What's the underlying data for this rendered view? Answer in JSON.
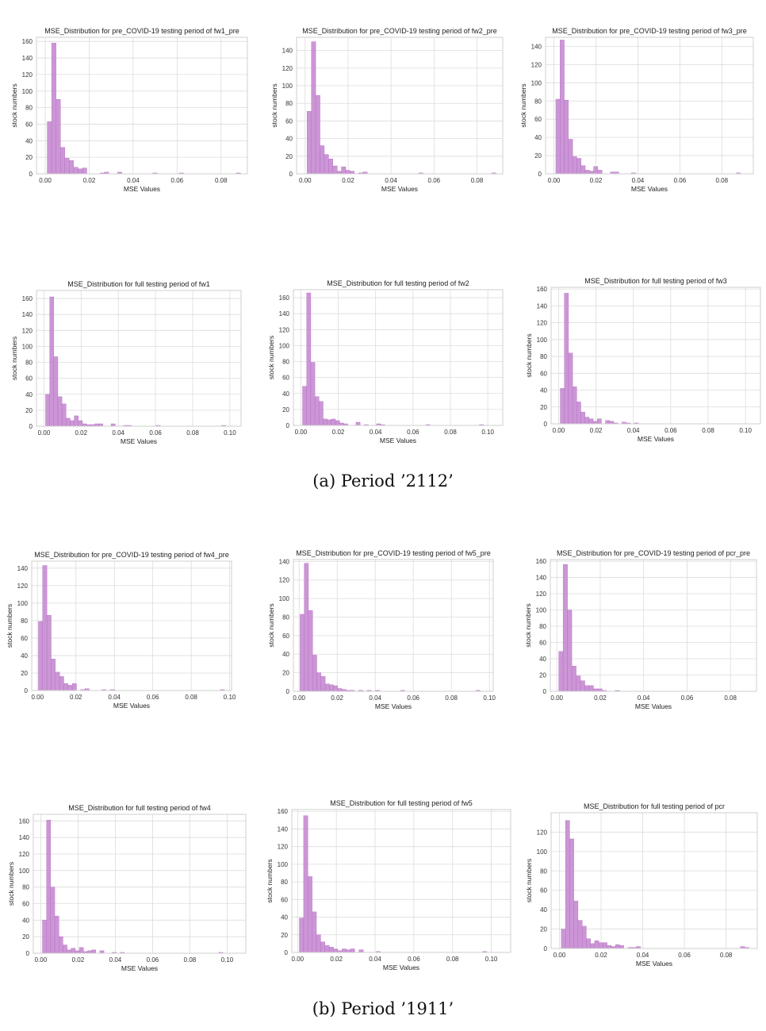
{
  "captions": {
    "a": "(a) Period ’2112’",
    "b": "(b) Period ’1911’"
  },
  "style": {
    "bar_color": "#c78bd2",
    "bar_edge": "#b36cc0",
    "grid_color": "#dcdcdc",
    "frame_color": "#cfcfcf"
  },
  "chart_data": [
    {
      "type": "bar",
      "title": "MSE_Distribution for pre_COVID-19 testing period of fw1_pre",
      "xlabel": "MSE Values",
      "ylabel": "stock numbers",
      "xlim": [
        -0.004,
        0.092
      ],
      "ylim": [
        0,
        165
      ],
      "xticks": [
        0.0,
        0.02,
        0.04,
        0.06,
        0.08
      ],
      "xtick_labels": [
        "0.00",
        "0.02",
        "0.04",
        "0.06",
        "0.08"
      ],
      "yticks": [
        0,
        20,
        40,
        60,
        80,
        100,
        120,
        140,
        160
      ],
      "bin_start": 0.0009,
      "bin_width": 0.002,
      "values": [
        63,
        158,
        90,
        32,
        19,
        16,
        8,
        6,
        7,
        0,
        0,
        0,
        1,
        2,
        0,
        0,
        2,
        0,
        0,
        0,
        0,
        0,
        0,
        0,
        1,
        0,
        0,
        0,
        0,
        0,
        1,
        0,
        0,
        0,
        0,
        0,
        0,
        0,
        0,
        0,
        0,
        0,
        0,
        1
      ]
    },
    {
      "type": "bar",
      "title": "MSE_Distribution for pre_COVID-19 testing period of fw2_pre",
      "xlabel": "MSE Values",
      "ylabel": "stock numbers",
      "xlim": [
        -0.004,
        0.092
      ],
      "ylim": [
        0,
        155
      ],
      "xticks": [
        0.0,
        0.02,
        0.04,
        0.06,
        0.08
      ],
      "xtick_labels": [
        "0.00",
        "0.02",
        "0.04",
        "0.06",
        "0.08"
      ],
      "yticks": [
        0,
        20,
        40,
        60,
        80,
        100,
        120,
        140
      ],
      "bin_start": 0.0009,
      "bin_width": 0.002,
      "values": [
        71,
        150,
        89,
        32,
        22,
        17,
        9,
        3,
        8,
        4,
        3,
        0,
        1,
        2,
        0,
        0,
        0,
        0,
        0,
        0,
        0,
        0,
        0,
        0,
        0,
        0,
        1,
        0,
        0,
        0,
        0,
        0,
        0,
        0,
        0,
        0,
        0,
        0,
        0,
        0,
        0,
        0,
        0,
        1
      ]
    },
    {
      "type": "bar",
      "title": "MSE_Distribution for pre_COVID-19 testing period of fw3_pre",
      "xlabel": "MSE Values",
      "ylabel": "stock numbers",
      "xlim": [
        -0.004,
        0.095
      ],
      "ylim": [
        0,
        150
      ],
      "xticks": [
        0.0,
        0.02,
        0.04,
        0.06,
        0.08
      ],
      "xtick_labels": [
        "0.00",
        "0.02",
        "0.04",
        "0.06",
        "0.08"
      ],
      "yticks": [
        0,
        20,
        40,
        60,
        80,
        100,
        120,
        140
      ],
      "bin_start": 0.0009,
      "bin_width": 0.002,
      "values": [
        82,
        147,
        81,
        38,
        19,
        17,
        9,
        4,
        3,
        8,
        4,
        0,
        0,
        2,
        2,
        0,
        0,
        0,
        1,
        0,
        0,
        0,
        0,
        0,
        0,
        0,
        0,
        0,
        0,
        0,
        0,
        0,
        0,
        0,
        0,
        0,
        0,
        0,
        0,
        0,
        0,
        0,
        0,
        1
      ]
    },
    {
      "type": "bar",
      "title": "MSE_Distribution for full testing period of fw1",
      "xlabel": "MSE Values",
      "ylabel": "stock numbers",
      "xlim": [
        -0.004,
        0.106
      ],
      "ylim": [
        0,
        170
      ],
      "xticks": [
        0.0,
        0.02,
        0.04,
        0.06,
        0.08,
        0.1
      ],
      "xtick_labels": [
        "0.00",
        "0.02",
        "0.04",
        "0.06",
        "0.08",
        "0.10"
      ],
      "yticks": [
        0,
        20,
        40,
        60,
        80,
        100,
        120,
        140,
        160
      ],
      "bin_start": 0.0009,
      "bin_width": 0.0022,
      "values": [
        40,
        162,
        87,
        37,
        28,
        10,
        7,
        13,
        7,
        3,
        2,
        2,
        3,
        3,
        0,
        0,
        3,
        0,
        0,
        1,
        1,
        0,
        0,
        0,
        0,
        0,
        0,
        1,
        0,
        0,
        0,
        0,
        0,
        0,
        0,
        0,
        0,
        0,
        0,
        0,
        0,
        0,
        0,
        1
      ]
    },
    {
      "type": "bar",
      "title": "MSE_Distribution for full testing period of fw2",
      "xlabel": "MSE Values",
      "ylabel": "stock numbers",
      "xlim": [
        -0.004,
        0.108
      ],
      "ylim": [
        0,
        170
      ],
      "xticks": [
        0.0,
        0.02,
        0.04,
        0.06,
        0.08,
        0.1
      ],
      "xtick_labels": [
        "0.00",
        "0.02",
        "0.04",
        "0.06",
        "0.08",
        "0.10"
      ],
      "yticks": [
        0,
        20,
        40,
        60,
        80,
        100,
        120,
        140,
        160
      ],
      "bin_start": 0.0009,
      "bin_width": 0.0022,
      "values": [
        49,
        166,
        79,
        36,
        30,
        8,
        7,
        8,
        6,
        3,
        2,
        0,
        0,
        4,
        0,
        1,
        0,
        0,
        2,
        1,
        0,
        0,
        0,
        0,
        0,
        0,
        0,
        0,
        0,
        0,
        1,
        0,
        0,
        0,
        0,
        0,
        0,
        0,
        0,
        0,
        0,
        0,
        0,
        1
      ]
    },
    {
      "type": "bar",
      "title": "MSE_Distribution for full testing period of fw3",
      "xlabel": "MSE Values",
      "ylabel": "stock numbers",
      "xlim": [
        -0.004,
        0.108
      ],
      "ylim": [
        0,
        162
      ],
      "xticks": [
        0.0,
        0.02,
        0.04,
        0.06,
        0.08,
        0.1
      ],
      "xtick_labels": [
        "0.00",
        "0.02",
        "0.04",
        "0.06",
        "0.08",
        "0.10"
      ],
      "yticks": [
        0,
        20,
        40,
        60,
        80,
        100,
        120,
        140,
        160
      ],
      "bin_start": 0.0009,
      "bin_width": 0.0022,
      "values": [
        42,
        155,
        84,
        44,
        26,
        14,
        8,
        6,
        3,
        6,
        0,
        4,
        3,
        1,
        0,
        2,
        1,
        0,
        1,
        0,
        0,
        0,
        0,
        0,
        0,
        0,
        0,
        0,
        0,
        0,
        0,
        0,
        0,
        0,
        0,
        0,
        0,
        0,
        0,
        0,
        0,
        0,
        0,
        0
      ]
    },
    {
      "type": "bar",
      "title": "MSE_Distribution for pre_COVID-19 testing period of fw4_pre",
      "xlabel": "MSE Values",
      "ylabel": "stock numbers",
      "xlim": [
        -0.003,
        0.101
      ],
      "ylim": [
        0,
        148
      ],
      "xticks": [
        0.0,
        0.02,
        0.04,
        0.06,
        0.08,
        0.1
      ],
      "xtick_labels": [
        "0.00",
        "0.02",
        "0.04",
        "0.06",
        "0.08",
        "0.10"
      ],
      "yticks": [
        0,
        20,
        40,
        60,
        80,
        100,
        120,
        140
      ],
      "bin_start": 0.0005,
      "bin_width": 0.0022,
      "values": [
        79,
        143,
        86,
        36,
        21,
        16,
        8,
        6,
        8,
        0,
        1,
        2,
        0,
        0,
        0,
        1,
        0,
        1,
        0,
        0,
        0,
        0,
        0,
        0,
        0,
        0,
        0,
        0,
        0,
        0,
        0,
        0,
        0,
        0,
        0,
        0,
        0,
        0,
        0,
        0,
        0,
        0,
        0,
        1
      ]
    },
    {
      "type": "bar",
      "title": "MSE_Distribution for pre_COVID-19 testing period of fw5_pre",
      "xlabel": "MSE Values",
      "ylabel": "stock numbers",
      "xlim": [
        -0.003,
        0.102
      ],
      "ylim": [
        0,
        142
      ],
      "xticks": [
        0.0,
        0.02,
        0.04,
        0.06,
        0.08,
        0.1
      ],
      "xtick_labels": [
        "0.00",
        "0.02",
        "0.04",
        "0.06",
        "0.08",
        "0.10"
      ],
      "yticks": [
        0,
        20,
        40,
        60,
        80,
        100,
        120,
        140
      ],
      "bin_start": 0.0005,
      "bin_width": 0.0022,
      "values": [
        83,
        138,
        87,
        39,
        20,
        16,
        8,
        7,
        6,
        3,
        2,
        1,
        1,
        0,
        1,
        0,
        1,
        0,
        1,
        0,
        0,
        0,
        0,
        0,
        1,
        0,
        0,
        0,
        0,
        0,
        0,
        0,
        0,
        0,
        0,
        0,
        0,
        0,
        0,
        0,
        0,
        0,
        1,
        0
      ]
    },
    {
      "type": "bar",
      "title": "MSE_Distribution for pre_COVID-19 testing period of pcr_pre",
      "xlabel": "MSE Values",
      "ylabel": "stock numbers",
      "xlim": [
        -0.003,
        0.092
      ],
      "ylim": [
        0,
        162
      ],
      "xticks": [
        0.0,
        0.02,
        0.04,
        0.06,
        0.08
      ],
      "xtick_labels": [
        "0.00",
        "0.02",
        "0.04",
        "0.06",
        "0.08"
      ],
      "yticks": [
        0,
        20,
        40,
        60,
        80,
        100,
        120,
        140,
        160
      ],
      "bin_start": 0.0009,
      "bin_width": 0.002,
      "values": [
        49,
        156,
        100,
        31,
        19,
        13,
        7,
        7,
        3,
        3,
        1,
        0,
        0,
        1,
        0,
        0,
        0,
        0,
        0,
        0,
        0,
        0,
        0,
        0,
        0,
        0,
        0,
        0,
        0,
        0,
        0,
        0,
        0,
        0,
        0,
        0,
        0,
        0,
        0,
        0,
        0,
        0,
        0,
        0
      ]
    },
    {
      "type": "bar",
      "title": "MSE_Distribution for full testing period of fw4",
      "xlabel": "MSE Values",
      "ylabel": "stock numbers",
      "xlim": [
        -0.004,
        0.11
      ],
      "ylim": [
        0,
        168
      ],
      "xticks": [
        0.0,
        0.02,
        0.04,
        0.06,
        0.08,
        0.1
      ],
      "xtick_labels": [
        "0.00",
        "0.02",
        "0.04",
        "0.06",
        "0.08",
        "0.10"
      ],
      "yticks": [
        0,
        20,
        40,
        60,
        80,
        100,
        120,
        140,
        160
      ],
      "bin_start": 0.0009,
      "bin_width": 0.0022,
      "values": [
        40,
        161,
        80,
        45,
        20,
        10,
        4,
        6,
        3,
        7,
        2,
        3,
        4,
        0,
        3,
        0,
        0,
        1,
        0,
        1,
        0,
        0,
        0,
        0,
        0,
        0,
        0,
        0,
        0,
        0,
        0,
        0,
        0,
        0,
        0,
        0,
        0,
        0,
        0,
        0,
        0,
        0,
        0,
        1
      ]
    },
    {
      "type": "bar",
      "title": "MSE_Distribution for full testing period of fw5",
      "xlabel": "MSE Values",
      "ylabel": "stock numbers",
      "xlim": [
        -0.003,
        0.11
      ],
      "ylim": [
        0,
        162
      ],
      "xticks": [
        0.0,
        0.02,
        0.04,
        0.06,
        0.08,
        0.1
      ],
      "xtick_labels": [
        "0.00",
        "0.02",
        "0.04",
        "0.06",
        "0.08",
        "0.10"
      ],
      "yticks": [
        0,
        20,
        40,
        60,
        80,
        100,
        120,
        140,
        160
      ],
      "bin_start": 0.0009,
      "bin_width": 0.0022,
      "values": [
        39,
        155,
        86,
        46,
        20,
        12,
        8,
        6,
        4,
        2,
        4,
        3,
        4,
        0,
        3,
        0,
        0,
        0,
        1,
        0,
        0,
        0,
        0,
        0,
        0,
        0,
        0,
        0,
        0,
        0,
        0,
        0,
        0,
        0,
        0,
        0,
        0,
        0,
        0,
        0,
        0,
        0,
        0,
        1
      ]
    },
    {
      "type": "bar",
      "title": "MSE_Distribution for full testing period of pcr",
      "xlabel": "MSE Values",
      "ylabel": "stock numbers",
      "xlim": [
        -0.004,
        0.095
      ],
      "ylim": [
        0,
        140
      ],
      "xticks": [
        0.0,
        0.02,
        0.04,
        0.06,
        0.08
      ],
      "xtick_labels": [
        "0.00",
        "0.02",
        "0.04",
        "0.06",
        "0.08"
      ],
      "yticks": [
        0,
        20,
        40,
        60,
        80,
        100,
        120
      ],
      "bin_start": 0.0009,
      "bin_width": 0.002,
      "values": [
        20,
        132,
        113,
        49,
        29,
        23,
        10,
        5,
        8,
        6,
        6,
        3,
        2,
        4,
        3,
        0,
        1,
        1,
        2,
        0,
        0,
        0,
        0,
        0,
        0,
        0,
        0,
        0,
        0,
        0,
        0,
        0,
        0,
        0,
        0,
        0,
        0,
        0,
        0,
        0,
        0,
        0,
        0,
        2,
        1
      ]
    }
  ]
}
